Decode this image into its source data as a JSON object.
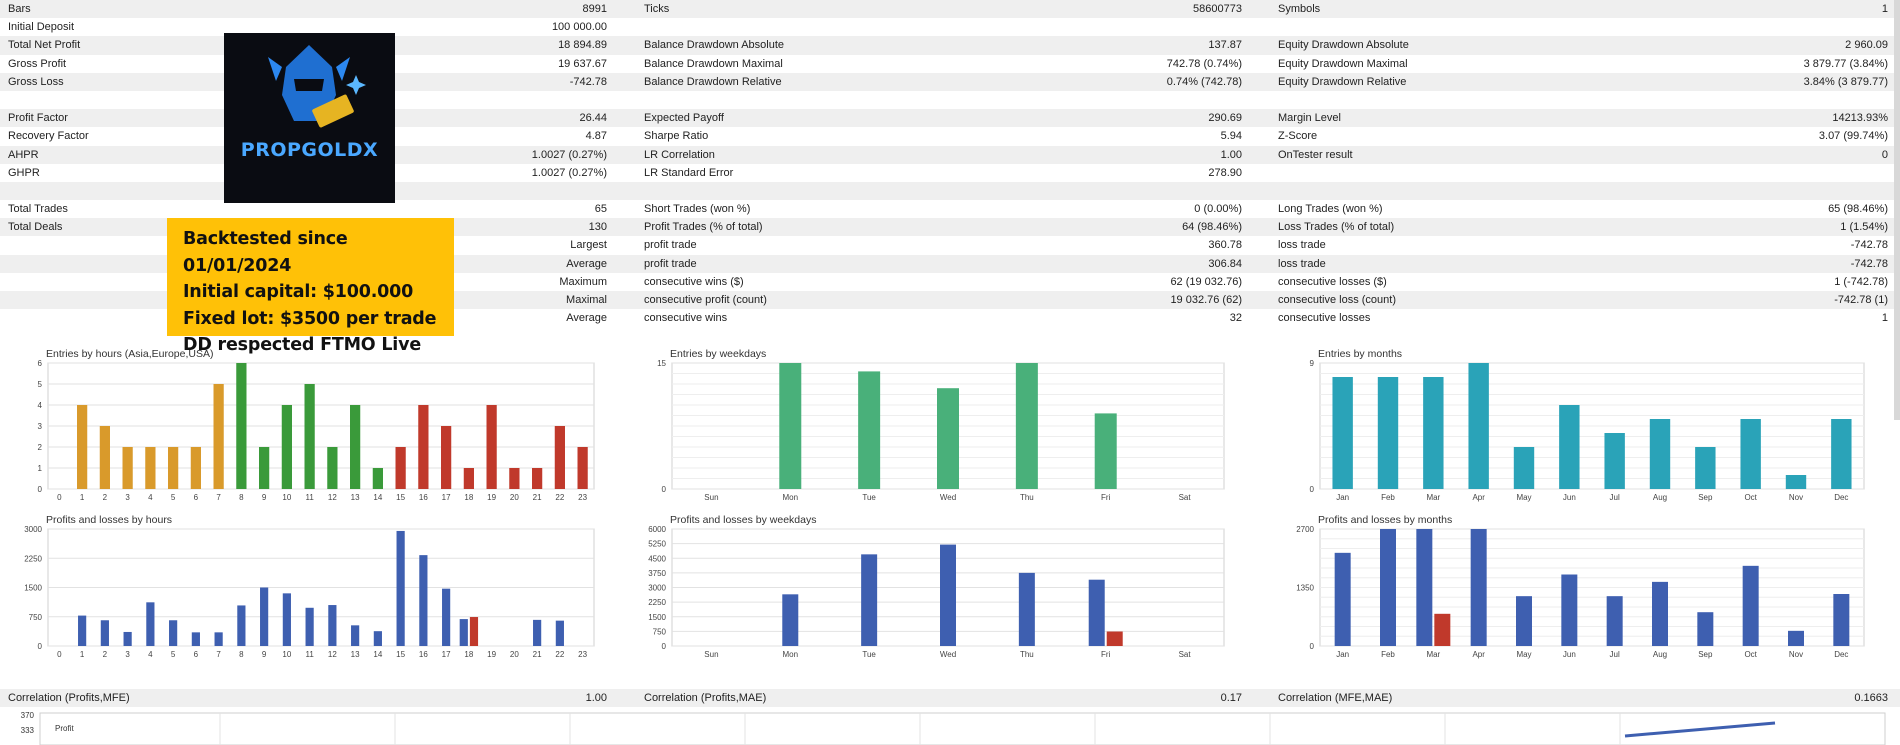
{
  "stats_rows": [
    {
      "shade": true,
      "c1l": "Bars",
      "c1v": "8991",
      "c2l": "Ticks",
      "c2v": "58600773",
      "c3l": "Symbols",
      "c3v": "1"
    },
    {
      "shade": false,
      "c1l": "Initial Deposit",
      "c1v": "100 000.00",
      "c2l": "",
      "c2v": "",
      "c3l": "",
      "c3v": ""
    },
    {
      "shade": true,
      "c1l": "Total Net Profit",
      "c1v": "18 894.89",
      "c2l": "Balance Drawdown Absolute",
      "c2v": "137.87",
      "c3l": "Equity Drawdown Absolute",
      "c3v": "2 960.09"
    },
    {
      "shade": false,
      "c1l": "Gross Profit",
      "c1v": "19 637.67",
      "c2l": "Balance Drawdown Maximal",
      "c2v": "742.78 (0.74%)",
      "c3l": "Equity Drawdown Maximal",
      "c3v": "3 879.77 (3.84%)"
    },
    {
      "shade": true,
      "c1l": "Gross Loss",
      "c1v": "-742.78",
      "c2l": "Balance Drawdown Relative",
      "c2v": "0.74% (742.78)",
      "c3l": "Equity Drawdown Relative",
      "c3v": "3.84% (3 879.77)"
    },
    {
      "shade": false,
      "c1l": "",
      "c1v": "",
      "c2l": "",
      "c2v": "",
      "c3l": "",
      "c3v": ""
    },
    {
      "shade": true,
      "c1l": "Profit Factor",
      "c1v": "26.44",
      "c2l": "Expected Payoff",
      "c2v": "290.69",
      "c3l": "Margin Level",
      "c3v": "14213.93%"
    },
    {
      "shade": false,
      "c1l": "Recovery Factor",
      "c1v": "4.87",
      "c2l": "Sharpe Ratio",
      "c2v": "5.94",
      "c3l": "Z-Score",
      "c3v": "3.07 (99.74%)"
    },
    {
      "shade": true,
      "c1l": "AHPR",
      "c1v": "1.0027 (0.27%)",
      "c2l": "LR Correlation",
      "c2v": "1.00",
      "c3l": "OnTester result",
      "c3v": "0"
    },
    {
      "shade": false,
      "c1l": "GHPR",
      "c1v": "1.0027 (0.27%)",
      "c2l": "LR Standard Error",
      "c2v": "278.90",
      "c3l": "",
      "c3v": ""
    },
    {
      "shade": true,
      "c1l": "",
      "c1v": "",
      "c2l": "",
      "c2v": "",
      "c3l": "",
      "c3v": ""
    },
    {
      "shade": false,
      "c1l": "Total Trades",
      "c1v": "65",
      "c2l": "Short Trades (won %)",
      "c2v": "0 (0.00%)",
      "c3l": "Long Trades (won %)",
      "c3v": "65 (98.46%)"
    },
    {
      "shade": true,
      "c1l": "Total Deals",
      "c1v": "130",
      "c2l": "Profit Trades (% of total)",
      "c2v": "64 (98.46%)",
      "c3l": "Loss Trades (% of total)",
      "c3v": "1 (1.54%)"
    },
    {
      "shade": false,
      "c1l": "",
      "c1v": "Largest",
      "c2l": "profit trade",
      "c2v": "360.78",
      "c3l": "loss trade",
      "c3v": "-742.78"
    },
    {
      "shade": true,
      "c1l": "",
      "c1v": "Average",
      "c2l": "profit trade",
      "c2v": "306.84",
      "c3l": "loss trade",
      "c3v": "-742.78"
    },
    {
      "shade": false,
      "c1l": "",
      "c1v": "Maximum",
      "c2l": "consecutive wins ($)",
      "c2v": "62 (19 032.76)",
      "c3l": "consecutive losses ($)",
      "c3v": "1 (-742.78)"
    },
    {
      "shade": true,
      "c1l": "",
      "c1v": "Maximal",
      "c2l": "consecutive profit (count)",
      "c2v": "19 032.76 (62)",
      "c3l": "consecutive loss (count)",
      "c3v": "-742.78 (1)"
    },
    {
      "shade": false,
      "c1l": "",
      "c1v": "Average",
      "c2l": "consecutive wins",
      "c2v": "32",
      "c3l": "consecutive losses",
      "c3v": "1"
    }
  ],
  "logo": {
    "text": "PROPGOLDX"
  },
  "note_lines": [
    "Backtested since 01/01/2024",
    "Initial capital: $100.000",
    "Fixed lot: $3500 per trade",
    "DD respected FTMO Live (Prop)"
  ],
  "correlation": {
    "profits_mfe_label": "Correlation (Profits,MFE)",
    "profits_mfe_value": "1.00",
    "profits_mae_label": "Correlation (Profits,MAE)",
    "profits_mae_value": "0.17",
    "mfe_mae_label": "Correlation (MFE,MAE)",
    "mfe_mae_value": "0.1663"
  },
  "profit_panel": {
    "label": "Profit",
    "yticks": [
      "370",
      "333"
    ]
  },
  "chart_data": [
    {
      "type": "bar",
      "id": "hours",
      "title": "Entries by hours (Asia,Europe,USA)",
      "categories": [
        "0",
        "1",
        "2",
        "3",
        "4",
        "5",
        "6",
        "7",
        "8",
        "9",
        "10",
        "11",
        "12",
        "13",
        "14",
        "15",
        "16",
        "17",
        "18",
        "19",
        "20",
        "21",
        "22",
        "23"
      ],
      "values": [
        0,
        4,
        3,
        2,
        2,
        2,
        2,
        5,
        6,
        2,
        4,
        5,
        2,
        4,
        1,
        2,
        4,
        3,
        1,
        4,
        1,
        1,
        3,
        2
      ],
      "yticks": [
        "0",
        "1",
        "2",
        "3",
        "4",
        "5",
        "6"
      ],
      "ylim": [
        0,
        6
      ],
      "colors": [
        "#d99a2b",
        "#3a9a3a",
        "#c0392b"
      ]
    },
    {
      "type": "bar",
      "id": "weekdays",
      "title": "Entries by weekdays",
      "categories": [
        "Sun",
        "Mon",
        "Tue",
        "Wed",
        "Thu",
        "Fri",
        "Sat"
      ],
      "values": [
        0,
        15,
        14,
        12,
        15,
        9,
        0
      ],
      "yticks": [
        "0",
        "15"
      ],
      "ylim": [
        0,
        15
      ],
      "colors": [
        "#49b07a"
      ]
    },
    {
      "type": "bar",
      "id": "months",
      "title": "Entries by months",
      "categories": [
        "Jan",
        "Feb",
        "Mar",
        "Apr",
        "May",
        "Jun",
        "Jul",
        "Aug",
        "Sep",
        "Oct",
        "Nov",
        "Dec"
      ],
      "values": [
        8,
        8,
        8,
        9,
        3,
        6,
        4,
        5,
        3,
        5,
        1,
        5
      ],
      "yticks": [
        "0",
        "9"
      ],
      "ylim": [
        0,
        9
      ],
      "colors": [
        "#2aa3b8"
      ]
    },
    {
      "type": "bar",
      "id": "pl-hours",
      "title": "Profits and losses by hours",
      "categories": [
        "0",
        "1",
        "2",
        "3",
        "4",
        "5",
        "6",
        "7",
        "8",
        "9",
        "10",
        "11",
        "12",
        "13",
        "14",
        "15",
        "16",
        "17",
        "18",
        "19",
        "20",
        "21",
        "22",
        "23"
      ],
      "profits": [
        0,
        780,
        660,
        360,
        1120,
        660,
        350,
        350,
        1040,
        1500,
        1350,
        980,
        1050,
        530,
        380,
        2950,
        2330,
        1470,
        690,
        0,
        0,
        670,
        650,
        0
      ],
      "losses": [
        0,
        0,
        0,
        0,
        0,
        0,
        0,
        0,
        0,
        0,
        0,
        0,
        0,
        0,
        0,
        0,
        0,
        0,
        743,
        0,
        0,
        0,
        0,
        0
      ],
      "yticks": [
        "0",
        "750",
        "1500",
        "2250",
        "3000"
      ],
      "ylim": [
        0,
        3000
      ],
      "colors": [
        "#3e5fb0",
        "#c0392b"
      ]
    },
    {
      "type": "bar",
      "id": "pl-weekdays",
      "title": "Profits and losses by weekdays",
      "categories": [
        "Sun",
        "Mon",
        "Tue",
        "Wed",
        "Thu",
        "Fri",
        "Sat"
      ],
      "profits": [
        0,
        2650,
        4700,
        5200,
        3750,
        3400,
        0
      ],
      "losses": [
        0,
        0,
        0,
        0,
        0,
        743,
        0
      ],
      "yticks": [
        "0",
        "750",
        "1500",
        "2250",
        "3000",
        "3750",
        "4500",
        "5250",
        "6000"
      ],
      "ylim": [
        0,
        6000
      ],
      "colors": [
        "#3e5fb0",
        "#c0392b"
      ]
    },
    {
      "type": "bar",
      "id": "pl-months",
      "title": "Profits and losses by months",
      "categories": [
        "Jan",
        "Feb",
        "Mar",
        "Apr",
        "May",
        "Jun",
        "Jul",
        "Aug",
        "Sep",
        "Oct",
        "Nov",
        "Dec"
      ],
      "profits": [
        2150,
        2700,
        2700,
        2700,
        1150,
        1650,
        1150,
        1480,
        780,
        1850,
        350,
        1200
      ],
      "losses": [
        0,
        0,
        743,
        0,
        0,
        0,
        0,
        0,
        0,
        0,
        0,
        0
      ],
      "yticks": [
        "0",
        "1350",
        "2700"
      ],
      "ylim": [
        0,
        2700
      ],
      "colors": [
        "#3e5fb0",
        "#c0392b"
      ]
    }
  ]
}
